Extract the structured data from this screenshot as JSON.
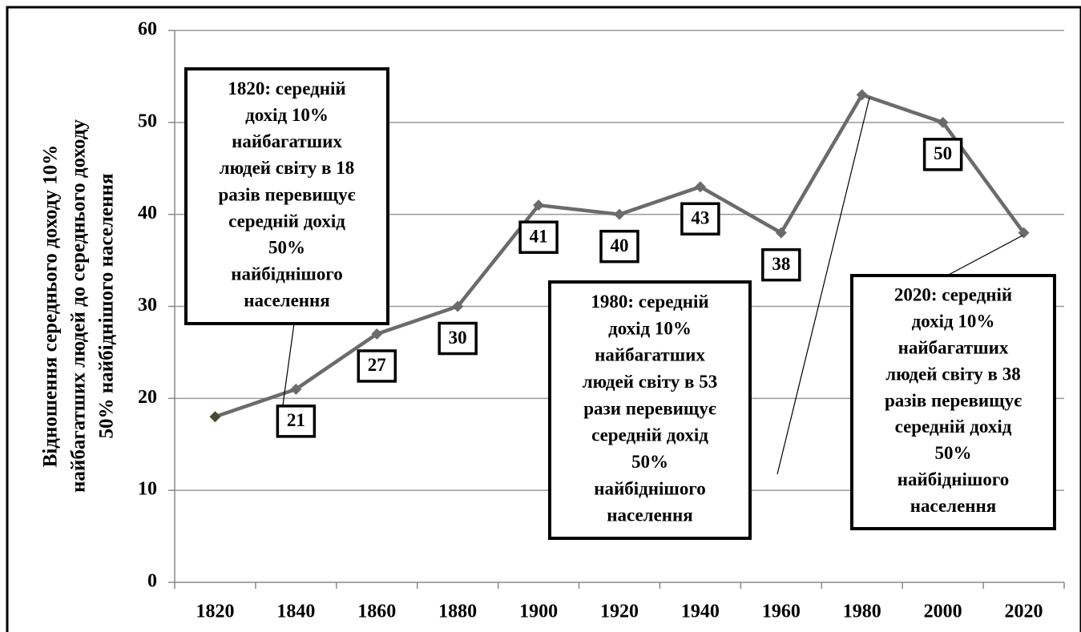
{
  "chart_data": {
    "type": "line",
    "y_label": [
      "Відношення середнього доходу 10%",
      "найбагатших людей до середнього доходу",
      "50% найбіднішого населення"
    ],
    "categories": [
      "1820",
      "1840",
      "1860",
      "1880",
      "1900",
      "1920",
      "1940",
      "1960",
      "1980",
      "2000",
      "2020"
    ],
    "series": [
      {
        "color": "#6b6b6b",
        "values": [
          18,
          21,
          27,
          30,
          41,
          40,
          43,
          38,
          53,
          50,
          38
        ],
        "value_labels": [
          null,
          "21",
          "27",
          "30",
          "41",
          "40",
          "43",
          "38",
          null,
          "50",
          null
        ]
      }
    ],
    "ylim": [
      0,
      60
    ],
    "yticks": [
      0,
      10,
      20,
      30,
      40,
      50,
      60
    ],
    "grid": true,
    "annotations": [
      {
        "lines": [
          "1820: середній",
          "дохід 10%",
          "найбагатших",
          "людей світу в 18",
          "разів перевищує",
          "середній дохід",
          "50%",
          "найбіднішого",
          "населення"
        ]
      },
      {
        "lines": [
          "1980: середній",
          "дохід 10%",
          "найбагатших",
          "людей світу в 53",
          "рази перевищує",
          "середній дохід",
          "50%",
          "найбіднішого",
          "населення"
        ]
      },
      {
        "lines": [
          "2020: середній",
          "дохід 10%",
          "найбагатших",
          "людей світу в 38",
          "разів перевищує",
          "середній дохід",
          "50%",
          "найбіднішого",
          "населення"
        ]
      }
    ]
  }
}
